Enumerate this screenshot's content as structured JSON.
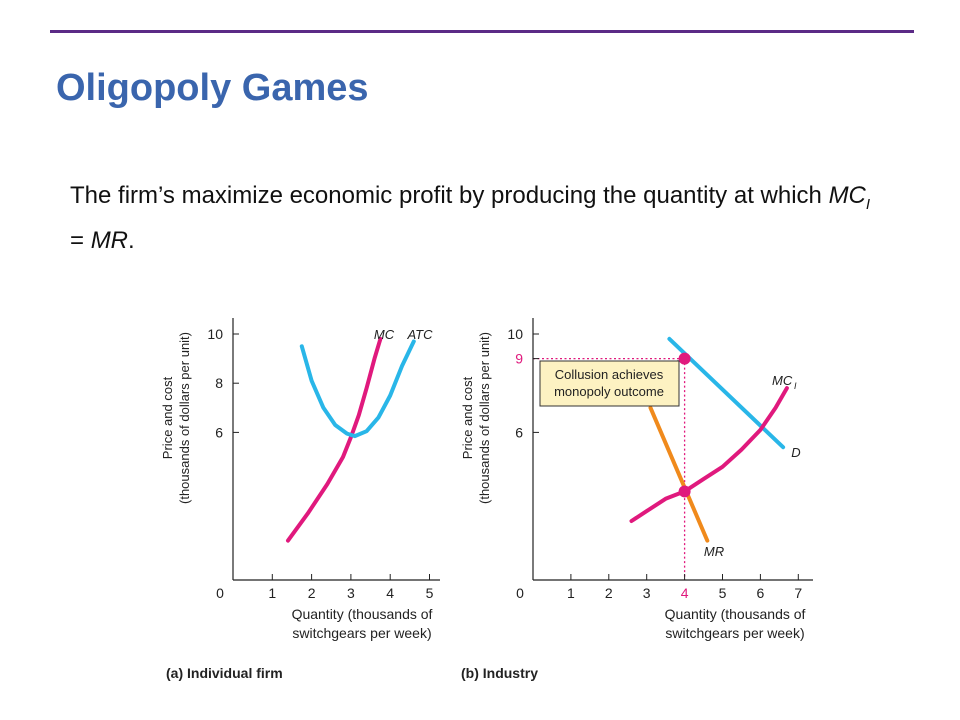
{
  "slide": {
    "title": "Oligopoly Games",
    "sentence_before": "The firm’s maximize economic profit by producing the quantity at which ",
    "mc_label": "MC",
    "mc_subscript": "I",
    "sentence_middle": " = ",
    "mr_label": "MR",
    "sentence_end": "."
  },
  "colors": {
    "title": "#3a65ad",
    "rule": "#5b2a86",
    "mc_curve": "#e0197d",
    "atc_curve": "#29b6e8",
    "mr_curve": "#f08a1c",
    "demand_curve": "#29b6e8",
    "guide": "#e0197d",
    "callout_fill": "#fdf2c2"
  },
  "chart_data": [
    {
      "type": "line",
      "caption": "(a) Individual firm",
      "ylabel_line1": "Price and cost",
      "ylabel_line2": "(thousands of dollars per unit)",
      "xlabel_line1": "Quantity (thousands of",
      "xlabel_line2": "switchgears per week)",
      "xlim": [
        0,
        5.3
      ],
      "ylim": [
        0,
        10.3
      ],
      "x_ticks": [
        "0",
        "1",
        "2",
        "3",
        "4",
        "5"
      ],
      "y_ticks": [
        "10",
        "8",
        "6"
      ],
      "y_tick_values": [
        10,
        8,
        6
      ],
      "series": [
        {
          "name": "MC",
          "color": "#e0197d",
          "points": [
            [
              1.4,
              1.6
            ],
            [
              1.9,
              2.7
            ],
            [
              2.4,
              3.9
            ],
            [
              2.8,
              5.0
            ],
            [
              3.0,
              5.8
            ],
            [
              3.2,
              6.7
            ],
            [
              3.4,
              7.8
            ],
            [
              3.6,
              9.0
            ],
            [
              3.75,
              9.8
            ]
          ]
        },
        {
          "name": "ATC",
          "color": "#29b6e8",
          "points": [
            [
              1.75,
              9.5
            ],
            [
              2.0,
              8.1
            ],
            [
              2.3,
              7.0
            ],
            [
              2.6,
              6.3
            ],
            [
              2.9,
              5.95
            ],
            [
              3.1,
              5.85
            ],
            [
              3.4,
              6.05
            ],
            [
              3.7,
              6.6
            ],
            [
              4.0,
              7.5
            ],
            [
              4.3,
              8.7
            ],
            [
              4.6,
              9.7
            ]
          ]
        }
      ]
    },
    {
      "type": "line",
      "caption": "(b) Industry",
      "ylabel_line1": "Price and cost",
      "ylabel_line2": "(thousands of dollars per unit)",
      "xlabel_line1": "Quantity (thousands of",
      "xlabel_line2": "switchgears per week)",
      "xlim": [
        0,
        7.4
      ],
      "ylim": [
        0,
        10.3
      ],
      "x_ticks": [
        "0",
        "1",
        "2",
        "3",
        "4",
        "5",
        "6",
        "7"
      ],
      "y_ticks": [
        "10",
        "9",
        "6"
      ],
      "y_tick_values": [
        10,
        9,
        6
      ],
      "highlight_x_tick": "4",
      "highlight_y_tick": "9",
      "series": [
        {
          "name": "D",
          "color": "#29b6e8",
          "points": [
            [
              3.6,
              9.8
            ],
            [
              6.6,
              5.4
            ]
          ]
        },
        {
          "name": "MR",
          "color": "#f08a1c",
          "points": [
            [
              3.1,
              7.0
            ],
            [
              4.6,
              1.6
            ]
          ]
        },
        {
          "name": "MC",
          "name_subscript": "I",
          "color": "#e0197d",
          "points": [
            [
              2.6,
              2.4
            ],
            [
              3.0,
              2.8
            ],
            [
              3.5,
              3.3
            ],
            [
              4.0,
              3.6
            ],
            [
              4.5,
              4.1
            ],
            [
              5.0,
              4.6
            ],
            [
              5.5,
              5.3
            ],
            [
              6.0,
              6.1
            ],
            [
              6.4,
              7.0
            ],
            [
              6.7,
              7.8
            ]
          ]
        }
      ],
      "equilibrium_points": [
        {
          "x": 4,
          "y": 9
        },
        {
          "x": 4,
          "y": 3.6
        }
      ],
      "annotation_line1": "Collusion achieves",
      "annotation_line2": "monopoly outcome"
    }
  ]
}
